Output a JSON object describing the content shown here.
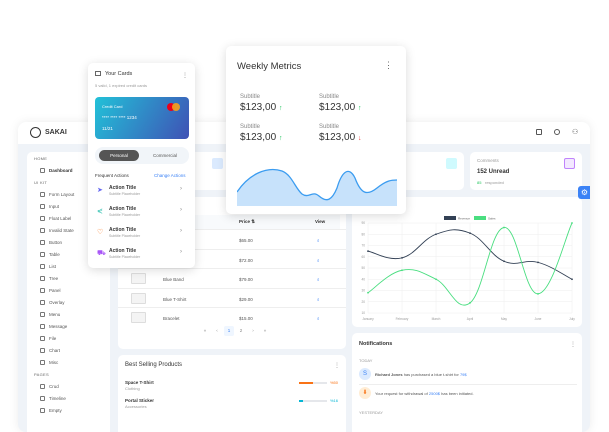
{
  "app": {
    "name": "SAKAI"
  },
  "sidebar": {
    "sections": [
      {
        "title": "HOME",
        "items": [
          "Dashboard"
        ]
      },
      {
        "title": "UI KIT",
        "items": [
          "Form Layout",
          "Input",
          "Float Label",
          "Invalid State",
          "Button",
          "Table",
          "List",
          "Tree",
          "Panel",
          "Overlay",
          "Menu",
          "Message",
          "File",
          "Chart",
          "Misc"
        ]
      },
      {
        "title": "PAGES",
        "items": [
          "Crud",
          "Timeline",
          "Empty"
        ]
      }
    ]
  },
  "stats": {
    "comments": {
      "label": "Comments",
      "value": "152 Unread",
      "highlight": "85",
      "sub": "responded"
    }
  },
  "cards_popup": {
    "title": "Your Cards",
    "subtitle": "5 valid, 1 expired credit cards",
    "card_label": "Credit Card",
    "card_number": "**** **** **** 1234",
    "expiry": "11/21",
    "card_brand": "mastercard",
    "tabs": [
      "Personal",
      "Commercial"
    ],
    "active_tab": "Personal",
    "frequent": "Frequent Actions",
    "change": "Change Actions",
    "actions": [
      {
        "title": "Action Title",
        "sub": "Subtitle Placeholder",
        "icon": "send-icon",
        "color": "#6366f1"
      },
      {
        "title": "Action Title",
        "sub": "Subtitle Placeholder",
        "icon": "share-icon",
        "color": "#14b8a6"
      },
      {
        "title": "Action Title",
        "sub": "Subtitle Placeholder",
        "icon": "shield-icon",
        "color": "#f97316"
      },
      {
        "title": "Action Title",
        "sub": "Subtitle Placeholder",
        "icon": "cart-icon",
        "color": "#a855f7"
      }
    ]
  },
  "weekly": {
    "title": "Weekly Metrics",
    "metrics": [
      {
        "label": "Subtitle",
        "value": "$123,00",
        "trend": "up"
      },
      {
        "label": "Subtitle",
        "value": "$123,00",
        "trend": "up"
      },
      {
        "label": "Subtitle",
        "value": "$123,00",
        "trend": "up"
      },
      {
        "label": "Subtitle",
        "value": "$123,00",
        "trend": "down"
      }
    ],
    "up": "↑",
    "down": "↓"
  },
  "table": {
    "headers": {
      "price": "Price ⇅",
      "view": "View"
    },
    "rows": [
      {
        "name": "",
        "price": "$65.00"
      },
      {
        "name": "",
        "price": "$72.00"
      },
      {
        "name": "Blue Band",
        "price": "$79.00"
      },
      {
        "name": "Blue T-Shirt",
        "price": "$29.00"
      },
      {
        "name": "Bracelet",
        "price": "$15.00"
      }
    ],
    "pages": [
      "«",
      "‹",
      "1",
      "2",
      "›",
      "»"
    ],
    "current_page": "1"
  },
  "best": {
    "title": "Best Selling Products",
    "items": [
      {
        "name": "Space T-Shirt",
        "cat": "Clothing",
        "pct": "%50",
        "value": 50,
        "color": "#f97316"
      },
      {
        "name": "Portal Sticker",
        "cat": "Accessories",
        "pct": "%16",
        "value": 16,
        "color": "#06b6d4"
      }
    ]
  },
  "notifications": {
    "title": "Notifications",
    "today": "TODAY",
    "yesterday": "YESTERDAY",
    "items": [
      {
        "avatar": "S",
        "pre_bold": "Richard Jones",
        "text": " has purchased a blue t-shirt for ",
        "amount": "79$"
      },
      {
        "avatar": "⬇",
        "text": "Your request for withdrawal of ",
        "amount": "2500$",
        "post": " has been initiated."
      }
    ]
  },
  "chart_data": {
    "type": "line",
    "categories": [
      "January",
      "February",
      "March",
      "April",
      "May",
      "June",
      "July"
    ],
    "series": [
      {
        "name": "Revenue",
        "values": [
          65,
          59,
          80,
          81,
          56,
          55,
          40
        ],
        "color": "#334155"
      },
      {
        "name": "Sales",
        "values": [
          28,
          48,
          40,
          19,
          86,
          27,
          90
        ],
        "color": "#4ade80"
      }
    ],
    "ylim": [
      10,
      90
    ],
    "yticks": [
      10,
      20,
      30,
      40,
      50,
      60,
      70,
      80,
      90
    ],
    "grid": true,
    "legend": "top"
  },
  "colors": {
    "primary": "#3b82f6",
    "settings": "#3b82f6"
  }
}
